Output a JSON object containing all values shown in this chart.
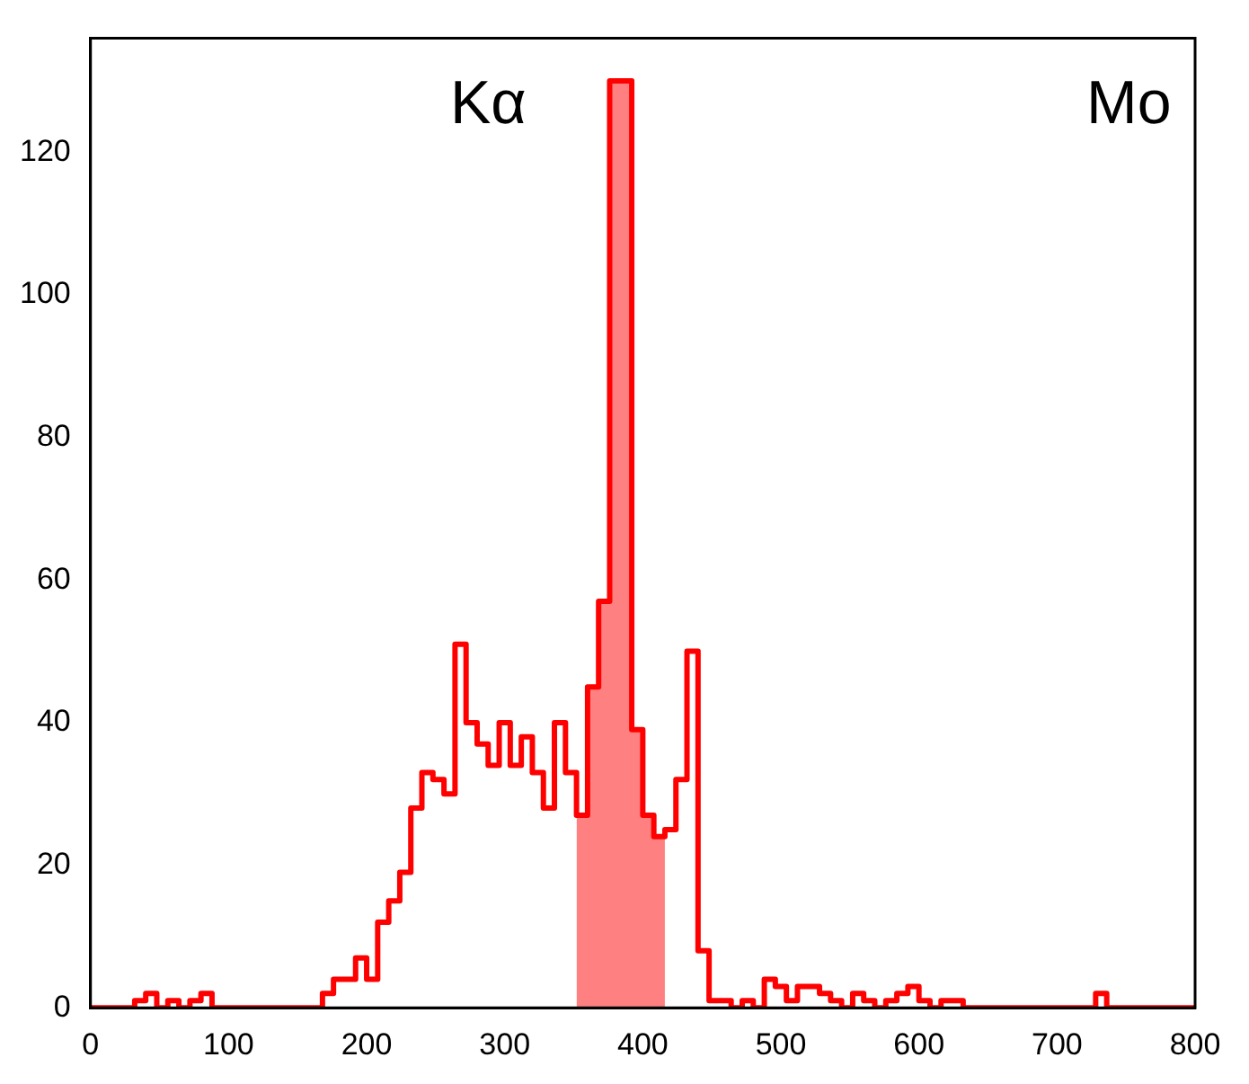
{
  "chart_data": {
    "type": "step",
    "x": [
      0,
      8,
      16,
      24,
      32,
      40,
      48,
      56,
      64,
      72,
      80,
      88,
      96,
      104,
      112,
      120,
      128,
      136,
      144,
      152,
      160,
      168,
      176,
      184,
      192,
      200,
      208,
      216,
      224,
      232,
      240,
      248,
      256,
      264,
      272,
      280,
      288,
      296,
      304,
      312,
      320,
      328,
      336,
      344,
      352,
      360,
      368,
      376,
      384,
      392,
      400,
      408,
      416,
      424,
      432,
      440,
      448,
      456,
      464,
      472,
      480,
      488,
      496,
      504,
      512,
      520,
      528,
      536,
      544,
      552,
      560,
      568,
      576,
      584,
      592,
      600,
      608,
      616,
      624,
      632,
      640,
      648,
      656,
      664,
      672,
      680,
      688,
      696,
      704,
      712,
      720,
      728,
      736,
      744,
      752,
      760,
      768,
      776,
      784,
      792,
      800
    ],
    "series": [
      {
        "color": "#ff0000",
        "values": [
          0,
          0,
          0,
          0,
          1,
          2,
          0,
          1,
          0,
          1,
          2,
          0,
          0,
          0,
          0,
          0,
          0,
          0,
          0,
          0,
          0,
          2,
          4,
          4,
          7,
          4,
          12,
          15,
          19,
          28,
          33,
          32,
          30,
          51,
          40,
          37,
          34,
          40,
          34,
          38,
          33,
          28,
          40,
          33,
          27,
          45,
          57,
          130,
          130,
          39,
          27,
          24,
          25,
          32,
          50,
          8,
          1,
          1,
          0,
          1,
          0,
          4,
          3,
          1,
          3,
          3,
          2,
          1,
          0,
          2,
          1,
          0,
          1,
          2,
          3,
          1,
          0,
          1,
          1,
          0,
          0,
          0,
          0,
          0,
          0,
          0,
          0,
          0,
          0,
          0,
          0,
          2,
          0,
          0,
          0,
          0,
          0,
          0,
          0,
          0,
          0
        ]
      },
      {
        "type": "area",
        "color": "#ff8080",
        "x": [
          352,
          360,
          360,
          368,
          368,
          376,
          376,
          384,
          384,
          392,
          392,
          400,
          400,
          408,
          408,
          416
        ],
        "values": [
          27,
          27,
          45,
          45,
          57,
          57,
          130,
          130,
          130,
          130,
          39,
          39,
          27,
          27,
          24,
          24
        ]
      }
    ],
    "xlim": [
      0,
      800
    ],
    "xticks": [
      0,
      100,
      200,
      300,
      400,
      500,
      600,
      700,
      800
    ],
    "ylim": [
      0,
      136
    ],
    "yticks": [
      0,
      20,
      40,
      60,
      80,
      100,
      120
    ],
    "annotations": [
      "Kα",
      "Mo"
    ]
  }
}
